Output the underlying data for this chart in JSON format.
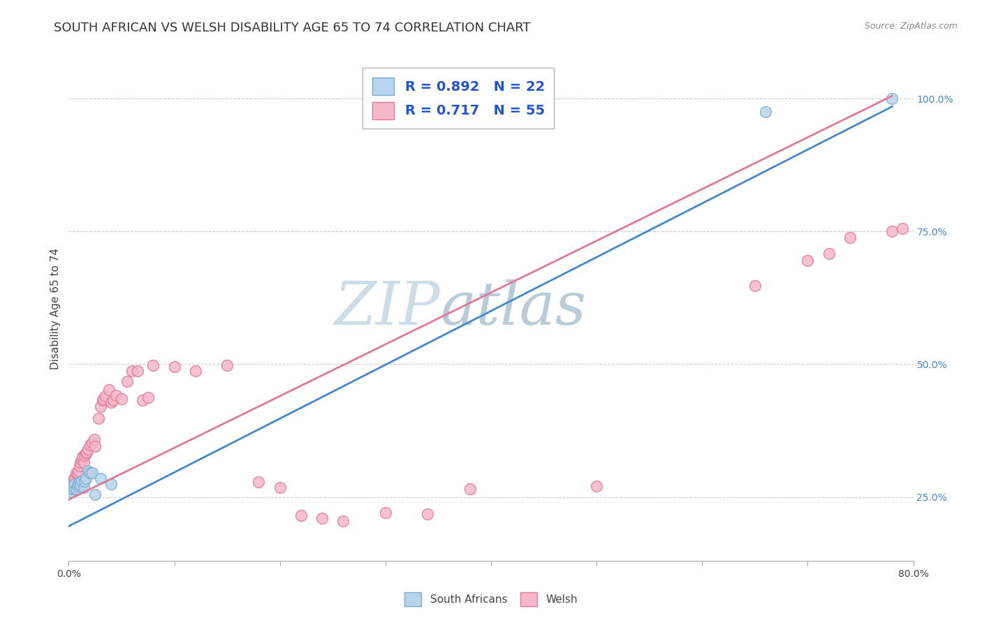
{
  "title": "SOUTH AFRICAN VS WELSH DISABILITY AGE 65 TO 74 CORRELATION CHART",
  "source": "Source: ZipAtlas.com",
  "ylabel": "Disability Age 65 to 74",
  "r_sa": 0.892,
  "n_sa": 22,
  "r_welsh": 0.717,
  "n_welsh": 55,
  "sa_color": "#b8d4ea",
  "sa_edge": "#7aaacf",
  "welsh_color": "#f5b8c8",
  "welsh_edge": "#e07898",
  "sa_line_color": "#4488cc",
  "welsh_line_color": "#e07898",
  "legend_text_color": "#2255cc",
  "watermark_zip_color": "#ccdde8",
  "watermark_atlas_color": "#b8ccd8",
  "background_color": "#ffffff",
  "grid_color": "#cccccc",
  "title_fontsize": 13,
  "axis_label_fontsize": 11,
  "tick_fontsize": 10,
  "xlim": [
    0.0,
    0.8
  ],
  "ylim": [
    0.13,
    1.08
  ],
  "sa_line_x0": 0.0,
  "sa_line_y0": 0.195,
  "sa_line_x1": 0.78,
  "sa_line_y1": 0.985,
  "welsh_line_x0": 0.0,
  "welsh_line_y0": 0.245,
  "welsh_line_x1": 0.78,
  "welsh_line_y1": 1.005,
  "sa_x": [
    0.002,
    0.003,
    0.004,
    0.005,
    0.006,
    0.007,
    0.008,
    0.009,
    0.01,
    0.011,
    0.012,
    0.014,
    0.015,
    0.016,
    0.018,
    0.02,
    0.022,
    0.025,
    0.03,
    0.04,
    0.66,
    0.78
  ],
  "sa_y": [
    0.26,
    0.265,
    0.27,
    0.265,
    0.275,
    0.265,
    0.27,
    0.275,
    0.278,
    0.272,
    0.28,
    0.268,
    0.28,
    0.285,
    0.3,
    0.295,
    0.295,
    0.255,
    0.285,
    0.275,
    0.975,
    1.0
  ],
  "welsh_x": [
    0.002,
    0.003,
    0.004,
    0.005,
    0.006,
    0.007,
    0.008,
    0.009,
    0.01,
    0.011,
    0.012,
    0.013,
    0.014,
    0.015,
    0.016,
    0.017,
    0.018,
    0.02,
    0.022,
    0.024,
    0.025,
    0.028,
    0.03,
    0.032,
    0.033,
    0.035,
    0.038,
    0.04,
    0.042,
    0.045,
    0.05,
    0.055,
    0.06,
    0.065,
    0.07,
    0.075,
    0.08,
    0.1,
    0.12,
    0.15,
    0.18,
    0.2,
    0.22,
    0.24,
    0.26,
    0.3,
    0.34,
    0.38,
    0.5,
    0.65,
    0.7,
    0.72,
    0.74,
    0.78,
    0.79
  ],
  "welsh_y": [
    0.27,
    0.275,
    0.28,
    0.285,
    0.285,
    0.295,
    0.295,
    0.3,
    0.308,
    0.315,
    0.32,
    0.325,
    0.315,
    0.328,
    0.332,
    0.335,
    0.34,
    0.348,
    0.352,
    0.358,
    0.345,
    0.398,
    0.42,
    0.432,
    0.435,
    0.44,
    0.452,
    0.428,
    0.432,
    0.442,
    0.435,
    0.468,
    0.488,
    0.488,
    0.432,
    0.438,
    0.498,
    0.495,
    0.488,
    0.498,
    0.278,
    0.268,
    0.215,
    0.21,
    0.205,
    0.22,
    0.218,
    0.265,
    0.27,
    0.648,
    0.695,
    0.708,
    0.738,
    0.75,
    0.755
  ]
}
